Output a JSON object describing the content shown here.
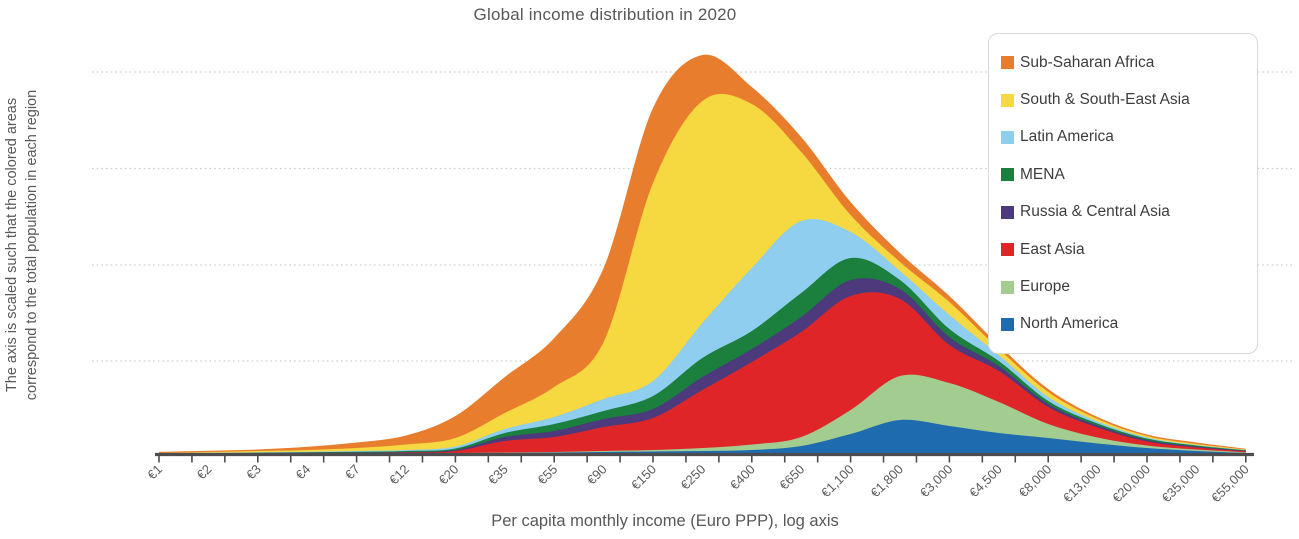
{
  "title": "Global income distribution in 2020",
  "x_axis": {
    "label": "Per capita monthly income (Euro PPP), log axis",
    "tick_labels": [
      "€1",
      "€2",
      "€3",
      "€4",
      "€7",
      "€12",
      "€20",
      "€35",
      "€55",
      "€90",
      "€150",
      "€250",
      "€400",
      "€650",
      "€1,100",
      "€1,800",
      "€3,000",
      "€4,500",
      "€8,000",
      "€13,000",
      "€20,000",
      "€35,000",
      "€55,000"
    ]
  },
  "y_axis": {
    "annotation_line1": "The axis is scaled such that the colored areas",
    "annotation_line2": "correspond to the total population in each region",
    "tick_labels_shown": false,
    "gridline_count": 4
  },
  "legend": {
    "position": "top-right",
    "items": [
      {
        "label": "Sub-Saharan Africa",
        "color": "#e87e2d"
      },
      {
        "label": "South & South-East Asia",
        "color": "#f6d840"
      },
      {
        "label": "Latin America",
        "color": "#8fceef"
      },
      {
        "label": "MENA",
        "color": "#1b7f3e"
      },
      {
        "label": "Russia & Central Asia",
        "color": "#4c3a7d"
      },
      {
        "label": "East Asia",
        "color": "#e02528"
      },
      {
        "label": "Europe",
        "color": "#a3cc90"
      },
      {
        "label": "North America",
        "color": "#1e6bb0"
      }
    ]
  },
  "colors": {
    "axis_line": "#4d4d4f",
    "tick_text": "#5b5b5d",
    "gridline": "#c9c9c9",
    "title_text": "#58585a",
    "legend_border": "#d9d9d9"
  },
  "chart_data": {
    "type": "area",
    "stacked": true,
    "x_scale": "log",
    "title": "Global income distribution in 2020",
    "xlabel": "Per capita monthly income (Euro PPP), log axis",
    "ylabel": "The axis is scaled such that the colored areas correspond to the total population in each region",
    "legend_position": "top-right",
    "grid": "4 dotted horizontal gridlines, no y tick labels",
    "categories": [
      "€1",
      "€2",
      "€3",
      "€4",
      "€7",
      "€12",
      "€20",
      "€35",
      "€55",
      "€90",
      "€150",
      "€250",
      "€400",
      "€650",
      "€1,100",
      "€1,800",
      "€3,000",
      "€4,500",
      "€8,000",
      "€13,000",
      "€20,000",
      "€35,000",
      "€55,000"
    ],
    "y_unit": "relative population density (pixel height; y axis is unlabeled)",
    "stack_order": "bottom to top",
    "series": [
      {
        "name": "North America",
        "color": "#1e6bb0",
        "values": [
          0,
          0,
          0,
          0,
          0,
          0.5,
          0.5,
          1,
          1.5,
          2,
          2.5,
          3,
          4,
          8,
          20,
          34,
          28,
          21,
          16,
          10.5,
          6,
          3,
          1
        ]
      },
      {
        "name": "Europe",
        "color": "#a3cc90",
        "values": [
          0,
          0,
          0,
          0,
          0,
          0,
          0.5,
          0.5,
          0.5,
          1,
          1.5,
          3,
          5.5,
          9,
          24,
          44,
          43,
          31,
          14,
          6,
          2.5,
          1.5,
          0.7
        ]
      },
      {
        "name": "East Asia",
        "color": "#e02528",
        "values": [
          0.2,
          0.4,
          0.6,
          0.8,
          1,
          1,
          2,
          11.5,
          15,
          24,
          32,
          58,
          82.5,
          105,
          114,
          77,
          38,
          31,
          17,
          10,
          4,
          2,
          1
        ]
      },
      {
        "name": "Russia & Central Asia",
        "color": "#4c3a7d",
        "values": [
          0.1,
          0.2,
          0.3,
          0.4,
          0.5,
          0.5,
          1,
          4,
          6,
          8,
          9,
          13,
          13,
          15,
          16,
          10,
          8,
          5,
          3,
          2,
          1.5,
          1,
          0.5
        ]
      },
      {
        "name": "MENA",
        "color": "#1b7f3e",
        "values": [
          0.2,
          0.3,
          0.4,
          0.5,
          0.7,
          1,
          1.5,
          4,
          7,
          8,
          13,
          19,
          18,
          24,
          22,
          9,
          8,
          5,
          3,
          2,
          1.5,
          1,
          0.5
        ]
      },
      {
        "name": "Latin America",
        "color": "#8fceef",
        "values": [
          0.2,
          0.3,
          0.4,
          0.6,
          0.8,
          1,
          2,
          4,
          7,
          12,
          15,
          35,
          63,
          72,
          26,
          9,
          14,
          6,
          4,
          2,
          1,
          0.5,
          0.3
        ]
      },
      {
        "name": "South & South-East Asia",
        "color": "#f6d840",
        "values": [
          0.4,
          0.8,
          1.3,
          1.7,
          3,
          5.5,
          8.5,
          16,
          30,
          57,
          198,
          222,
          164,
          69,
          17,
          9,
          13,
          6,
          5,
          2.5,
          1.5,
          1,
          0.5
        ]
      },
      {
        "name": "Sub-Saharan Africa",
        "color": "#e87e2d",
        "values": [
          1,
          1.2,
          1.5,
          3.2,
          5.5,
          9,
          22,
          36,
          49,
          74,
          75,
          46,
          17,
          15,
          13,
          9,
          6,
          4,
          3,
          2,
          1.5,
          1.5,
          0.8
        ]
      }
    ]
  }
}
